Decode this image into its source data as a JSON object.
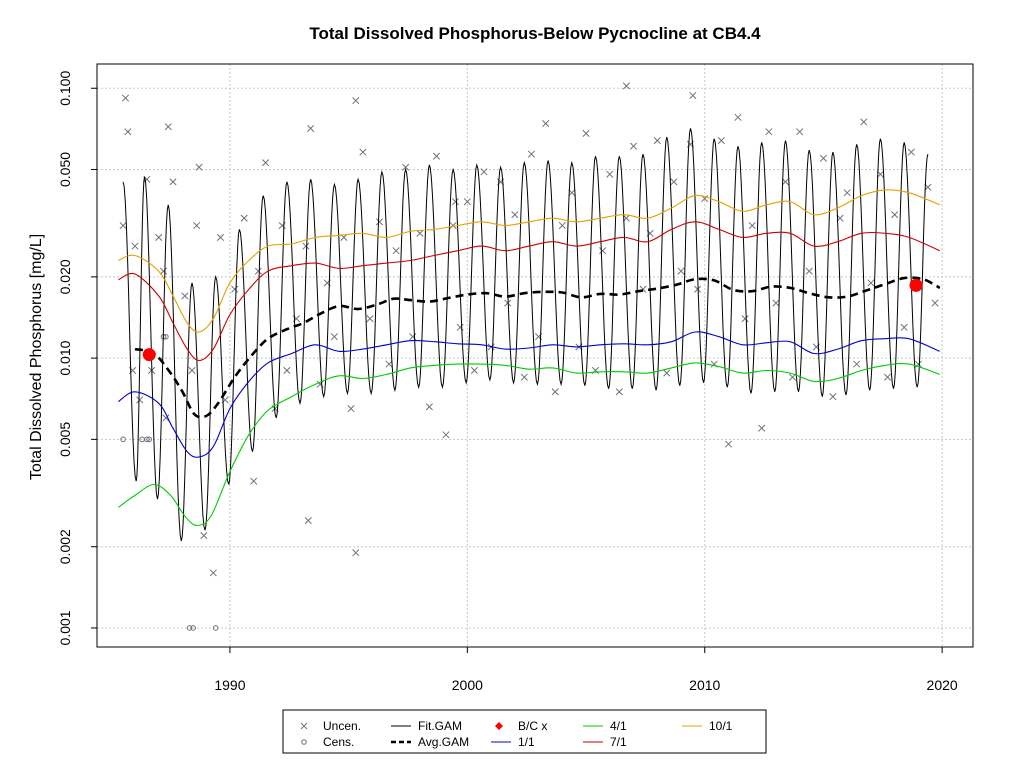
{
  "chart_data": {
    "type": "scatter",
    "title": "Total Dissolved Phosphorus-Below Pycnocline at CB4.4",
    "xlabel": "",
    "ylabel": "Total Dissolved Phosphorus [mg/L]",
    "y_scale": "log",
    "xlim": [
      1984.4,
      2021.3
    ],
    "ylim": [
      0.00085,
      0.123
    ],
    "grid": true,
    "x_ticks": [
      1990,
      2000,
      2010,
      2020
    ],
    "y_ticks": [
      0.001,
      0.002,
      0.005,
      0.01,
      0.02,
      0.05,
      0.1
    ],
    "y_tick_labels": [
      "0.001",
      "0.002",
      "0.005",
      "0.010",
      "0.020",
      "0.050",
      "0.100"
    ],
    "legend_position": "bottom",
    "legend": [
      {
        "label": "Uncen.",
        "symbol": "x",
        "color": "#6b7280"
      },
      {
        "label": "Cens.",
        "symbol": "circle",
        "color": "#6b7280"
      },
      {
        "label": "Fit.GAM",
        "symbol": "line",
        "color": "#000000"
      },
      {
        "label": "Avg.GAM",
        "symbol": "dashed",
        "color": "#000000"
      },
      {
        "label": "B/C x",
        "symbol": "diamond",
        "color": "#ff0000"
      },
      {
        "label": "1/1",
        "symbol": "line",
        "color": "#0000cd"
      },
      {
        "label": "4/1",
        "symbol": "line",
        "color": "#00cc00"
      },
      {
        "label": "7/1",
        "symbol": "line",
        "color": "#cc0000"
      },
      {
        "label": "10/1",
        "symbol": "line",
        "color": "#e8a000"
      }
    ],
    "baseline_current": [
      {
        "label": "baseline",
        "x": 1986.6,
        "y": 0.0103,
        "color": "#ff0000"
      },
      {
        "label": "current",
        "x": 2018.9,
        "y": 0.0186,
        "color": "#ff0000"
      }
    ],
    "series": [
      {
        "name": "10/1",
        "color": "#e8a000",
        "x": [
          1985.3,
          1986.0,
          1987.0,
          1987.6,
          1988.2,
          1988.7,
          1989.3,
          1990.0,
          1990.8,
          1991.6,
          1992.6,
          1993.6,
          1994.6,
          1995.6,
          1996.6,
          1997.6,
          1998.6,
          1999.6,
          2000.6,
          2001.6,
          2002.6,
          2003.6,
          2004.6,
          2005.6,
          2006.6,
          2007.6,
          2008.6,
          2009.6,
          2010.6,
          2011.6,
          2012.6,
          2013.6,
          2014.6,
          2015.6,
          2016.6,
          2017.6,
          2018.6,
          2019.9
        ],
        "y": [
          0.023,
          0.024,
          0.021,
          0.017,
          0.0135,
          0.0125,
          0.014,
          0.019,
          0.023,
          0.026,
          0.0265,
          0.028,
          0.0285,
          0.029,
          0.028,
          0.0295,
          0.03,
          0.031,
          0.032,
          0.031,
          0.032,
          0.033,
          0.032,
          0.033,
          0.034,
          0.033,
          0.036,
          0.04,
          0.038,
          0.035,
          0.037,
          0.038,
          0.034,
          0.036,
          0.04,
          0.042,
          0.041,
          0.037
        ]
      },
      {
        "name": "7/1",
        "color": "#cc0000",
        "x": [
          1985.3,
          1986.0,
          1987.0,
          1987.6,
          1988.2,
          1988.7,
          1989.3,
          1990.0,
          1990.8,
          1991.6,
          1992.6,
          1993.6,
          1994.6,
          1995.6,
          1996.6,
          1997.6,
          1998.6,
          1999.6,
          2000.6,
          2001.6,
          2002.6,
          2003.6,
          2004.6,
          2005.6,
          2006.6,
          2007.6,
          2008.6,
          2009.6,
          2010.6,
          2011.6,
          2012.6,
          2013.6,
          2014.6,
          2015.6,
          2016.6,
          2017.6,
          2018.6,
          2019.9
        ],
        "y": [
          0.0195,
          0.0205,
          0.017,
          0.0135,
          0.0108,
          0.0098,
          0.0108,
          0.0145,
          0.018,
          0.021,
          0.022,
          0.0225,
          0.0215,
          0.022,
          0.0225,
          0.023,
          0.024,
          0.025,
          0.026,
          0.025,
          0.026,
          0.027,
          0.026,
          0.027,
          0.028,
          0.027,
          0.03,
          0.032,
          0.03,
          0.028,
          0.029,
          0.029,
          0.026,
          0.027,
          0.029,
          0.029,
          0.028,
          0.025
        ]
      },
      {
        "name": "Avg.GAM",
        "color": "#000000",
        "x": [
          1986.0,
          1986.8,
          1987.5,
          1988.0,
          1988.5,
          1989.0,
          1989.5,
          1990.2,
          1990.9,
          1991.6,
          1992.4,
          1993.1,
          1993.8,
          1994.6,
          1995.4,
          1996.2,
          1996.9,
          1997.6,
          1998.4,
          1999.2,
          2000.0,
          2000.8,
          2001.6,
          2002.4,
          2003.2,
          2004.0,
          2004.8,
          2005.6,
          2006.4,
          2007.2,
          2008.0,
          2008.8,
          2009.6,
          2010.4,
          2011.2,
          2012.0,
          2012.8,
          2013.6,
          2014.4,
          2015.2,
          2016.0,
          2016.8,
          2017.6,
          2018.4,
          2019.2,
          2019.9
        ],
        "y": [
          0.0108,
          0.0104,
          0.0088,
          0.0075,
          0.0062,
          0.0061,
          0.0068,
          0.0085,
          0.0102,
          0.0118,
          0.0128,
          0.0135,
          0.0146,
          0.0156,
          0.0152,
          0.0158,
          0.0166,
          0.0164,
          0.0162,
          0.0167,
          0.0172,
          0.0174,
          0.0169,
          0.0174,
          0.0176,
          0.0175,
          0.0168,
          0.0173,
          0.0172,
          0.0177,
          0.0181,
          0.0187,
          0.0196,
          0.0194,
          0.0179,
          0.0177,
          0.0184,
          0.0182,
          0.0174,
          0.0168,
          0.0169,
          0.0178,
          0.0188,
          0.0198,
          0.0196,
          0.0182
        ]
      },
      {
        "name": "1/1",
        "color": "#0000cd",
        "x": [
          1985.3,
          1986.0,
          1987.0,
          1987.6,
          1988.2,
          1988.7,
          1989.3,
          1990.0,
          1990.8,
          1991.6,
          1992.6,
          1993.6,
          1994.6,
          1995.6,
          1996.6,
          1997.6,
          1998.6,
          1999.6,
          2000.6,
          2001.6,
          2002.6,
          2003.6,
          2004.6,
          2005.6,
          2006.6,
          2007.6,
          2008.6,
          2009.6,
          2010.6,
          2011.6,
          2012.6,
          2013.6,
          2014.6,
          2015.6,
          2016.6,
          2017.6,
          2018.6,
          2019.9
        ],
        "y": [
          0.0069,
          0.0075,
          0.0068,
          0.0055,
          0.0045,
          0.0043,
          0.0047,
          0.0065,
          0.0082,
          0.0096,
          0.0104,
          0.0112,
          0.0106,
          0.0108,
          0.0112,
          0.0116,
          0.0115,
          0.0113,
          0.0112,
          0.0108,
          0.0109,
          0.0112,
          0.011,
          0.0112,
          0.0113,
          0.0112,
          0.0115,
          0.0125,
          0.012,
          0.0112,
          0.0114,
          0.0115,
          0.0104,
          0.0108,
          0.0116,
          0.0118,
          0.0118,
          0.0106
        ]
      },
      {
        "name": "4/1",
        "color": "#00cc00",
        "x": [
          1985.3,
          1986.0,
          1986.8,
          1987.5,
          1988.1,
          1988.6,
          1989.2,
          1990.0,
          1990.8,
          1991.6,
          1992.6,
          1993.6,
          1994.6,
          1995.6,
          1996.6,
          1997.6,
          1998.6,
          1999.6,
          2000.6,
          2001.6,
          2002.6,
          2003.6,
          2004.6,
          2005.6,
          2006.6,
          2007.6,
          2008.6,
          2009.6,
          2010.6,
          2011.6,
          2012.6,
          2013.6,
          2014.6,
          2015.6,
          2016.6,
          2017.6,
          2018.6,
          2019.9
        ],
        "y": [
          0.0028,
          0.0031,
          0.0034,
          0.0031,
          0.0026,
          0.0024,
          0.0026,
          0.0038,
          0.0052,
          0.0064,
          0.0072,
          0.008,
          0.0086,
          0.0084,
          0.0087,
          0.0092,
          0.0094,
          0.0095,
          0.0095,
          0.0094,
          0.0091,
          0.0092,
          0.0088,
          0.0089,
          0.0089,
          0.0088,
          0.0092,
          0.0096,
          0.0093,
          0.0088,
          0.009,
          0.0088,
          0.0082,
          0.0084,
          0.009,
          0.0094,
          0.0095,
          0.0087
        ]
      }
    ],
    "fit_gam": {
      "name": "Fit.GAM",
      "color": "#000000",
      "peak_x": [
        1985.5,
        1986.4,
        1987.4,
        1988.4,
        1989.4,
        1990.4,
        1991.4,
        1992.4,
        1993.4,
        1994.4,
        1995.4,
        1996.4,
        1997.4,
        1998.4,
        1999.4,
        2000.4,
        2001.4,
        2002.4,
        2003.4,
        2004.4,
        2005.4,
        2006.4,
        2007.4,
        2008.4,
        2009.4,
        2010.4,
        2011.4,
        2012.4,
        2013.4,
        2014.4,
        2015.4,
        2016.4,
        2017.4,
        2018.4,
        2019.4
      ],
      "peak_y": [
        0.045,
        0.047,
        0.037,
        0.019,
        0.02,
        0.03,
        0.04,
        0.045,
        0.046,
        0.044,
        0.046,
        0.049,
        0.05,
        0.052,
        0.05,
        0.052,
        0.051,
        0.053,
        0.054,
        0.053,
        0.056,
        0.056,
        0.057,
        0.066,
        0.071,
        0.065,
        0.061,
        0.063,
        0.064,
        0.059,
        0.058,
        0.062,
        0.065,
        0.063,
        0.057
      ],
      "trough_x": [
        1986.05,
        1986.95,
        1987.95,
        1988.95,
        1989.95,
        1990.95,
        1991.95,
        1992.95,
        1993.95,
        1994.95,
        1995.95,
        1996.95,
        1997.95,
        1998.95,
        1999.95,
        2000.95,
        2001.95,
        2002.95,
        2003.95,
        2004.95,
        2005.95,
        2006.95,
        2007.95,
        2008.95,
        2009.95,
        2010.95,
        2011.95,
        2012.95,
        2013.95,
        2014.95,
        2015.95,
        2016.95,
        2017.95,
        2018.95
      ],
      "trough_y": [
        0.0035,
        0.003,
        0.0021,
        0.0023,
        0.0034,
        0.0045,
        0.006,
        0.0068,
        0.0072,
        0.0074,
        0.0074,
        0.0076,
        0.0078,
        0.0078,
        0.0081,
        0.0083,
        0.0081,
        0.008,
        0.008,
        0.0079,
        0.0077,
        0.0077,
        0.0076,
        0.0079,
        0.0081,
        0.0078,
        0.0074,
        0.0075,
        0.0075,
        0.0072,
        0.0073,
        0.0076,
        0.0077,
        0.0078
      ]
    },
    "observations_uncensored": {
      "symbol": "x",
      "color": "#6b7280",
      "x": [
        1985.5,
        1985.7,
        1985.9,
        1986.0,
        1986.2,
        1986.5,
        1986.7,
        1987.0,
        1987.3,
        1987.4,
        1987.6,
        1988.1,
        1988.4,
        1988.7,
        1988.9,
        1989.3,
        1989.6,
        1989.8,
        1990.2,
        1990.6,
        1991.0,
        1991.2,
        1991.5,
        1991.9,
        1992.2,
        1992.4,
        1992.8,
        1993.2,
        1993.4,
        1993.8,
        1994.1,
        1994.4,
        1994.8,
        1995.1,
        1995.3,
        1995.6,
        1995.9,
        1996.3,
        1996.7,
        1997.0,
        1997.4,
        1997.7,
        1998.0,
        1998.4,
        1998.7,
        1999.1,
        1999.4,
        1999.7,
        2000.0,
        2000.3,
        2000.7,
        2001.0,
        2001.4,
        2001.7,
        2002.0,
        2002.4,
        2002.7,
        2003.0,
        2003.3,
        2003.7,
        2004.0,
        2004.4,
        2004.7,
        2005.0,
        2005.4,
        2005.7,
        2006.0,
        2006.4,
        2006.7,
        2007.0,
        2007.4,
        2007.7,
        2008.0,
        2008.4,
        2008.7,
        2009.0,
        2009.4,
        2009.7,
        2010.0,
        2010.4,
        2010.7,
        2011.0,
        2011.4,
        2011.7,
        2012.0,
        2012.4,
        2012.7,
        2013.0,
        2013.4,
        2013.7,
        2014.0,
        2014.4,
        2014.7,
        2015.0,
        2015.4,
        2015.7,
        2016.0,
        2016.4,
        2016.7,
        2017.0,
        2017.4,
        2017.7,
        2018.0,
        2018.4,
        2018.7,
        2019.0,
        2019.4,
        2019.7,
        1985.6,
        1987.2,
        1988.6,
        1993.3,
        1995.3,
        1999.5,
        2006.7,
        2009.5
      ],
      "y": [
        0.031,
        0.069,
        0.009,
        0.026,
        0.007,
        0.046,
        0.009,
        0.028,
        0.006,
        0.072,
        0.045,
        0.017,
        0.009,
        0.051,
        0.0022,
        0.0016,
        0.028,
        0.007,
        0.018,
        0.033,
        0.0035,
        0.021,
        0.053,
        0.0065,
        0.031,
        0.009,
        0.014,
        0.026,
        0.071,
        0.008,
        0.019,
        0.012,
        0.028,
        0.0065,
        0.0019,
        0.058,
        0.014,
        0.032,
        0.0095,
        0.025,
        0.051,
        0.012,
        0.029,
        0.0066,
        0.056,
        0.0052,
        0.031,
        0.013,
        0.038,
        0.009,
        0.049,
        0.011,
        0.045,
        0.016,
        0.034,
        0.0085,
        0.057,
        0.012,
        0.074,
        0.0075,
        0.031,
        0.041,
        0.011,
        0.068,
        0.009,
        0.025,
        0.048,
        0.0075,
        0.033,
        0.061,
        0.018,
        0.029,
        0.064,
        0.0088,
        0.045,
        0.021,
        0.062,
        0.018,
        0.039,
        0.0095,
        0.064,
        0.0048,
        0.078,
        0.014,
        0.031,
        0.0055,
        0.069,
        0.016,
        0.045,
        0.0085,
        0.069,
        0.021,
        0.011,
        0.055,
        0.0072,
        0.033,
        0.041,
        0.0095,
        0.075,
        0.019,
        0.048,
        0.0085,
        0.034,
        0.013,
        0.058,
        0.0095,
        0.043,
        0.016,
        0.092,
        0.021,
        0.031,
        0.0025,
        0.09,
        0.038,
        0.102,
        0.094
      ]
    },
    "observations_censored": {
      "symbol": "circle",
      "color": "#6b7280",
      "x": [
        1985.5,
        1986.3,
        1986.5,
        1986.6,
        1987.2,
        1987.3,
        1988.3,
        1988.45,
        1989.4
      ],
      "y": [
        0.005,
        0.005,
        0.005,
        0.005,
        0.012,
        0.012,
        0.001,
        0.001,
        0.001
      ]
    }
  }
}
